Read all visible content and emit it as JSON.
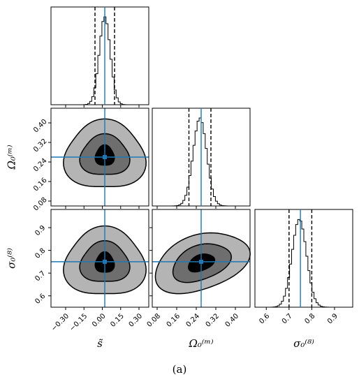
{
  "caption": "(a)",
  "colors": {
    "truth": "#1f77b4",
    "contour_inner": "#000000",
    "contour_mid": "#6e6e6e",
    "contour_outer": "#b4b4b4",
    "hist": "#000000",
    "quantile": "#000000"
  },
  "chart_data": {
    "type": "corner",
    "parameters": [
      {
        "symbol": "s",
        "label": "s̃",
        "range": [
          -0.42,
          0.38
        ],
        "ticks": [
          "−0.30",
          "−0.15",
          "0.00",
          "0.15",
          "0.30"
        ],
        "tick_values": [
          -0.3,
          -0.15,
          0.0,
          0.15,
          0.3
        ],
        "truth": 0.02,
        "quantiles": [
          -0.06,
          0.02,
          0.1
        ],
        "mean": 0.02,
        "sd": 0.045
      },
      {
        "symbol": "Omega_0^(m)",
        "label": "Ω₀⁽ᵐ⁾",
        "range": [
          0.06,
          0.46
        ],
        "ticks": [
          "0.08",
          "0.16",
          "0.24",
          "0.32",
          "0.40"
        ],
        "tick_values": [
          0.08,
          0.16,
          0.24,
          0.32,
          0.4
        ],
        "truth": 0.26,
        "quantiles": [
          0.21,
          0.26,
          0.3
        ],
        "mean": 0.255,
        "sd": 0.028
      },
      {
        "symbol": "sigma_0^(8)",
        "label": "σ₀⁽⁸⁾",
        "range": [
          0.55,
          0.98
        ],
        "ticks": [
          "0.6",
          "0.7",
          "0.8",
          "0.9"
        ],
        "tick_values": [
          0.6,
          0.7,
          0.8,
          0.9
        ],
        "truth": 0.75,
        "quantiles": [
          0.7,
          0.75,
          0.8
        ],
        "mean": 0.745,
        "sd": 0.032
      }
    ],
    "x_tick_labels": {
      "s": [
        "−0.30",
        "−0.15",
        "0.00",
        "0.15",
        "0.30"
      ],
      "Omega_0^(m)": [
        "0.08",
        "0.16",
        "0.24",
        "0.32",
        "0.40"
      ],
      "sigma_0^(8)": [
        "0.6",
        "0.7",
        "0.8",
        "0.9"
      ]
    },
    "y_tick_labels": {
      "Omega_0^(m)": [
        "0.08",
        "0.16",
        "0.24",
        "0.32",
        "0.40"
      ],
      "sigma_0^(8)": [
        "0.6",
        "0.7",
        "0.8",
        "0.9"
      ]
    },
    "contour_levels": [
      "1σ",
      "2σ",
      "3σ"
    ],
    "panels": [
      {
        "row": 0,
        "col": 0,
        "kind": "histogram",
        "parameter": "s"
      },
      {
        "row": 1,
        "col": 0,
        "kind": "contour",
        "x": "s",
        "y": "Omega_0^(m)",
        "center": [
          0.02,
          0.265
        ]
      },
      {
        "row": 1,
        "col": 1,
        "kind": "histogram",
        "parameter": "Omega_0^(m)"
      },
      {
        "row": 2,
        "col": 0,
        "kind": "contour",
        "x": "s",
        "y": "sigma_0^(8)",
        "center": [
          0.02,
          0.745
        ]
      },
      {
        "row": 2,
        "col": 1,
        "kind": "contour",
        "x": "Omega_0^(m)",
        "y": "sigma_0^(8)",
        "center": [
          0.26,
          0.745
        ]
      },
      {
        "row": 2,
        "col": 2,
        "kind": "histogram",
        "parameter": "sigma_0^(8)"
      }
    ],
    "grid": false,
    "legend": "none"
  }
}
